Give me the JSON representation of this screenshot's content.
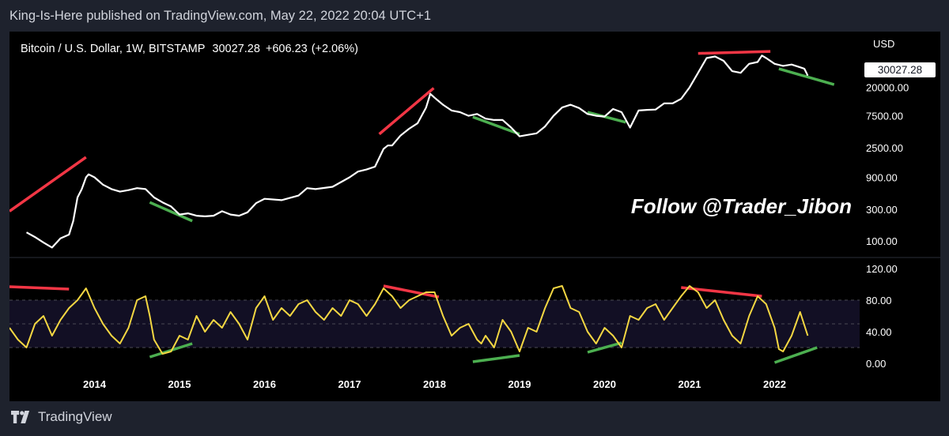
{
  "header": {
    "text": "King-Is-Here published on TradingView.com, May 22, 2022 20:04 UTC+1"
  },
  "footer": {
    "brand": "TradingView",
    "logo_icon": "tradingview-logo-icon"
  },
  "colors": {
    "price_line": "#ffffff",
    "rsi_line": "#f4d742",
    "bearish_trendline": "#f23645",
    "bullish_trendline": "#4caf50",
    "rsi_band_fill": "#120f24",
    "background": "#000000"
  },
  "chart_data": [
    {
      "type": "line",
      "title": "Bitcoin / U.S. Dollar, 1W, BITSTAMP",
      "last_price": "30027.28",
      "change": "+606.23",
      "change_pct": "(+2.06%)",
      "price_label": "30027.28",
      "currency": "USD",
      "log_scale": true,
      "ylim": [
        60,
        110000
      ],
      "y_ticks": [
        "20000.00",
        "7500.00",
        "2500.00",
        "900.00",
        "300.00",
        "100.00"
      ],
      "y_tick_values": [
        20000,
        7500,
        2500,
        900,
        300,
        100
      ],
      "series": [
        {
          "x": [
            2013.2,
            2013.3,
            2013.4,
            2013.5,
            2013.6,
            2013.7,
            2013.75,
            2013.8,
            2013.85,
            2013.9,
            2013.93,
            2014.0,
            2014.1,
            2014.2,
            2014.3,
            2014.4,
            2014.5,
            2014.6,
            2014.7,
            2014.8,
            2014.9,
            2015.0,
            2015.1,
            2015.2,
            2015.3,
            2015.4,
            2015.5,
            2015.6,
            2015.7,
            2015.8,
            2015.9,
            2016.0,
            2016.2,
            2016.4,
            2016.5,
            2016.6,
            2016.8,
            2017.0,
            2017.1,
            2017.2,
            2017.3,
            2017.4,
            2017.45,
            2017.5,
            2017.6,
            2017.7,
            2017.8,
            2017.9,
            2017.95,
            2018.0,
            2018.1,
            2018.2,
            2018.3,
            2018.4,
            2018.5,
            2018.6,
            2018.7,
            2018.8,
            2018.9,
            2019.0,
            2019.1,
            2019.2,
            2019.3,
            2019.4,
            2019.5,
            2019.6,
            2019.7,
            2019.8,
            2019.9,
            2020.0,
            2020.1,
            2020.2,
            2020.3,
            2020.4,
            2020.5,
            2020.6,
            2020.7,
            2020.8,
            2020.9,
            2021.0,
            2021.1,
            2021.2,
            2021.3,
            2021.4,
            2021.5,
            2021.6,
            2021.7,
            2021.8,
            2021.85,
            2021.9,
            2022.0,
            2022.1,
            2022.2,
            2022.3,
            2022.35,
            2022.39
          ],
          "values": [
            135,
            115,
            95,
            80,
            110,
            125,
            200,
            450,
            600,
            900,
            1000,
            900,
            700,
            600,
            550,
            580,
            620,
            600,
            450,
            380,
            330,
            250,
            260,
            240,
            235,
            240,
            280,
            250,
            240,
            270,
            370,
            430,
            410,
            480,
            620,
            600,
            650,
            900,
            1100,
            1180,
            1300,
            2400,
            2700,
            2700,
            3800,
            4800,
            5800,
            10000,
            16000,
            14000,
            11000,
            9000,
            8500,
            7500,
            8000,
            6800,
            6500,
            6500,
            5000,
            3700,
            3900,
            4100,
            5200,
            7500,
            10000,
            11000,
            9800,
            8000,
            7500,
            7300,
            9500,
            8500,
            5000,
            9000,
            9200,
            9300,
            11500,
            11500,
            13500,
            20000,
            33000,
            55000,
            58000,
            50000,
            35000,
            33000,
            45000,
            48000,
            60000,
            55000,
            45000,
            42000,
            44000,
            40000,
            38000,
            30027
          ]
        }
      ],
      "trendlines": [
        {
          "color": "bearish",
          "from": [
            2013.0,
            280
          ],
          "to": [
            2013.9,
            1800
          ]
        },
        {
          "color": "bullish",
          "from": [
            2014.65,
            380
          ],
          "to": [
            2015.15,
            200
          ]
        },
        {
          "color": "bearish",
          "from": [
            2017.35,
            4000
          ],
          "to": [
            2017.99,
            19500
          ]
        },
        {
          "color": "bullish",
          "from": [
            2018.45,
            7200
          ],
          "to": [
            2019.0,
            4000
          ]
        },
        {
          "color": "bullish",
          "from": [
            2019.8,
            8500
          ],
          "to": [
            2020.25,
            6000
          ]
        },
        {
          "color": "bearish",
          "from": [
            2021.1,
            64500
          ],
          "to": [
            2021.95,
            69000
          ]
        },
        {
          "color": "bullish",
          "from": [
            2022.05,
            38000
          ],
          "to": [
            2022.7,
            22000
          ]
        }
      ],
      "annotation": "Follow @Trader_Jibon"
    },
    {
      "type": "line",
      "ylim": [
        -10,
        130
      ],
      "y_ticks": [
        "120.00",
        "80.00",
        "40.00",
        "0.00"
      ],
      "y_tick_values": [
        120,
        80,
        40,
        0
      ],
      "band": [
        20,
        80
      ],
      "midline": 50,
      "series": [
        {
          "x": [
            2013.0,
            2013.1,
            2013.2,
            2013.3,
            2013.4,
            2013.5,
            2013.6,
            2013.7,
            2013.8,
            2013.9,
            2014.0,
            2014.1,
            2014.2,
            2014.3,
            2014.4,
            2014.5,
            2014.6,
            2014.65,
            2014.7,
            2014.8,
            2014.9,
            2015.0,
            2015.1,
            2015.2,
            2015.3,
            2015.4,
            2015.5,
            2015.6,
            2015.7,
            2015.8,
            2015.9,
            2016.0,
            2016.1,
            2016.2,
            2016.3,
            2016.4,
            2016.5,
            2016.6,
            2016.7,
            2016.8,
            2016.9,
            2017.0,
            2017.1,
            2017.2,
            2017.3,
            2017.4,
            2017.5,
            2017.6,
            2017.7,
            2017.8,
            2017.9,
            2018.0,
            2018.1,
            2018.2,
            2018.3,
            2018.4,
            2018.5,
            2018.55,
            2018.6,
            2018.7,
            2018.8,
            2018.9,
            2019.0,
            2019.1,
            2019.2,
            2019.3,
            2019.4,
            2019.5,
            2019.6,
            2019.7,
            2019.8,
            2019.9,
            2020.0,
            2020.1,
            2020.2,
            2020.3,
            2020.4,
            2020.5,
            2020.6,
            2020.7,
            2020.8,
            2020.9,
            2021.0,
            2021.1,
            2021.2,
            2021.3,
            2021.4,
            2021.5,
            2021.6,
            2021.7,
            2021.8,
            2021.9,
            2022.0,
            2022.05,
            2022.1,
            2022.2,
            2022.3,
            2022.39
          ],
          "values": [
            45,
            30,
            20,
            50,
            60,
            35,
            55,
            70,
            80,
            95,
            70,
            50,
            35,
            25,
            45,
            80,
            85,
            60,
            30,
            12,
            15,
            35,
            30,
            60,
            40,
            55,
            45,
            65,
            50,
            30,
            70,
            85,
            55,
            70,
            60,
            75,
            80,
            65,
            55,
            70,
            60,
            80,
            75,
            60,
            75,
            95,
            85,
            70,
            80,
            85,
            90,
            90,
            60,
            35,
            45,
            50,
            30,
            25,
            35,
            20,
            55,
            40,
            15,
            45,
            40,
            70,
            95,
            98,
            70,
            65,
            40,
            25,
            45,
            35,
            20,
            60,
            55,
            70,
            75,
            55,
            70,
            85,
            98,
            90,
            70,
            80,
            55,
            35,
            25,
            60,
            85,
            75,
            45,
            18,
            15,
            35,
            65,
            35
          ]
        }
      ],
      "trendlines": [
        {
          "color": "bearish",
          "from": [
            2013.0,
            97
          ],
          "to": [
            2013.7,
            94
          ]
        },
        {
          "color": "bullish",
          "from": [
            2014.65,
            8
          ],
          "to": [
            2015.15,
            25
          ]
        },
        {
          "color": "bearish",
          "from": [
            2017.4,
            98
          ],
          "to": [
            2018.05,
            84
          ]
        },
        {
          "color": "bullish",
          "from": [
            2018.45,
            2
          ],
          "to": [
            2019.0,
            10
          ]
        },
        {
          "color": "bullish",
          "from": [
            2019.8,
            14
          ],
          "to": [
            2020.2,
            26
          ]
        },
        {
          "color": "bearish",
          "from": [
            2020.9,
            96
          ],
          "to": [
            2021.85,
            85
          ]
        },
        {
          "color": "bullish",
          "from": [
            2022.0,
            1
          ],
          "to": [
            2022.5,
            20
          ]
        }
      ]
    }
  ],
  "x_axis": {
    "ticks": [
      "2014",
      "2015",
      "2016",
      "2017",
      "2018",
      "2019",
      "2020",
      "2021",
      "2022"
    ],
    "tick_values": [
      2014,
      2015,
      2016,
      2017,
      2018,
      2019,
      2020,
      2021,
      2022
    ],
    "xlim": [
      2013.0,
      2023.0
    ]
  }
}
